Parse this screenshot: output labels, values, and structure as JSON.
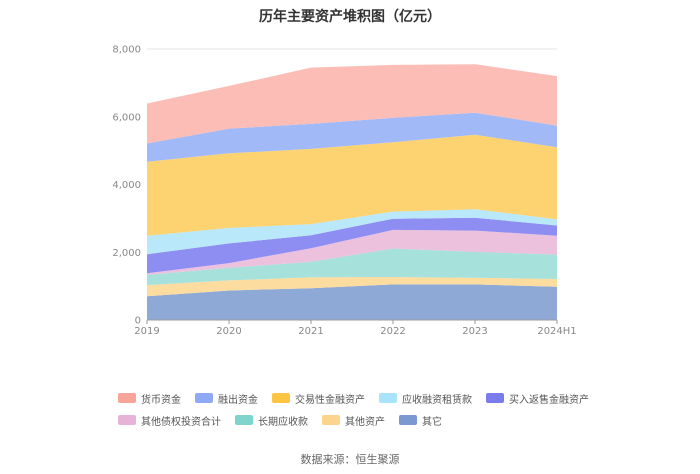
{
  "title": "历年主要资产堆积图（亿元）",
  "source": "数据来源：恒生聚源",
  "chart_data": {
    "type": "area",
    "stacked": true,
    "categories": [
      "2019",
      "2020",
      "2021",
      "2022",
      "2023",
      "2024H1"
    ],
    "y_ticks": [
      "0",
      "2,000",
      "4,000",
      "6,000",
      "8,000"
    ],
    "ylim": [
      0,
      8000
    ],
    "grid": true,
    "legend_position": "bottom",
    "series": [
      {
        "name": "其它",
        "color": "#8fa9d6",
        "values": [
          700,
          870,
          940,
          1050,
          1050,
          980
        ]
      },
      {
        "name": "其他资产",
        "color": "#fddca0",
        "values": [
          330,
          300,
          320,
          220,
          200,
          230
        ]
      },
      {
        "name": "长期应收款",
        "color": "#a6e1dc",
        "values": [
          300,
          370,
          460,
          840,
          760,
          720
        ]
      },
      {
        "name": "其他债权投资合计",
        "color": "#ecc1dd",
        "values": [
          50,
          140,
          400,
          550,
          630,
          560
        ]
      },
      {
        "name": "买入返售金融资产",
        "color": "#8e8ef2",
        "values": [
          560,
          580,
          380,
          330,
          380,
          300
        ]
      },
      {
        "name": "应收融资租赁款",
        "color": "#b9e8fb",
        "values": [
          550,
          460,
          330,
          210,
          250,
          180
        ]
      },
      {
        "name": "交易性金融资产",
        "color": "#fdd270",
        "values": [
          2180,
          2200,
          2220,
          2050,
          2200,
          2130
        ]
      },
      {
        "name": "融出资金",
        "color": "#a2b9f7",
        "values": [
          540,
          730,
          740,
          720,
          650,
          640
        ]
      },
      {
        "name": "货币资金",
        "color": "#fbbdb5",
        "values": [
          1180,
          1260,
          1660,
          1560,
          1430,
          1460
        ]
      }
    ]
  },
  "legend": {
    "rows": [
      [
        {
          "label": "货币资金",
          "color": "#f8a49a"
        },
        {
          "label": "融出资金",
          "color": "#8ea9f6"
        },
        {
          "label": "交易性金融资产",
          "color": "#fcc544"
        },
        {
          "label": "应收融资租赁款",
          "color": "#a9e3fb"
        },
        {
          "label": "买入返售金融资产",
          "color": "#7b7bee"
        }
      ],
      [
        {
          "label": "其他债权投资合计",
          "color": "#e6b3d6"
        },
        {
          "label": "长期应收款",
          "color": "#7fd5cd"
        },
        {
          "label": "其他资产",
          "color": "#fdd48e"
        },
        {
          "label": "其它",
          "color": "#7b98d0"
        }
      ]
    ]
  }
}
